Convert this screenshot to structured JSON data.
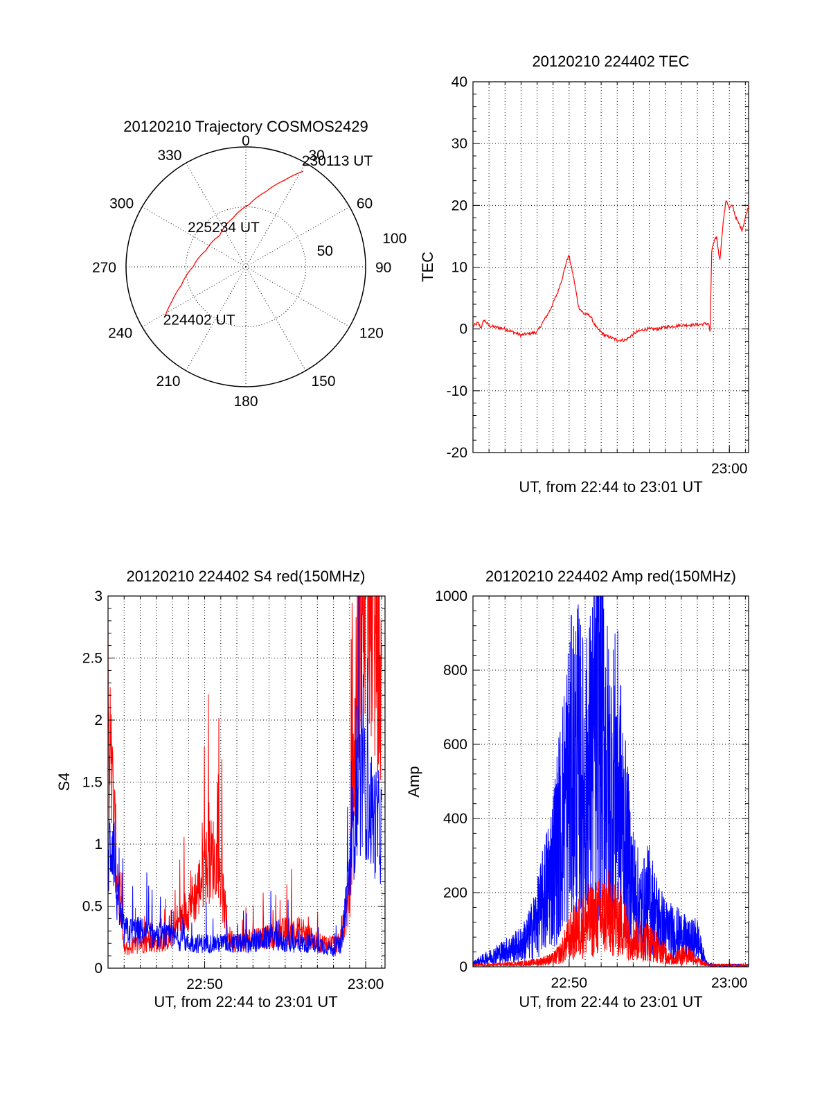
{
  "colors": {
    "red_series": "#ff0000",
    "blue_series": "#0000ff",
    "axes": "#000000"
  },
  "chart_data": [
    {
      "id": "trajectory",
      "type": "polar",
      "title": "20120210 Trajectory COSMOS2429",
      "angle_labels": [
        {
          "deg": 0,
          "text": "0"
        },
        {
          "deg": 30,
          "text": "30"
        },
        {
          "deg": 60,
          "text": "60"
        },
        {
          "deg": 90,
          "text": "90"
        },
        {
          "deg": 120,
          "text": "120"
        },
        {
          "deg": 150,
          "text": "150"
        },
        {
          "deg": 180,
          "text": "180"
        },
        {
          "deg": 210,
          "text": "210"
        },
        {
          "deg": 240,
          "text": "240"
        },
        {
          "deg": 270,
          "text": "270"
        },
        {
          "deg": 300,
          "text": "300"
        },
        {
          "deg": 330,
          "text": "330"
        }
      ],
      "radial_labels": [
        {
          "value": 50,
          "text": "50"
        },
        {
          "value": 100,
          "text": "100"
        }
      ],
      "r_max": 100,
      "track": [
        {
          "az": 238,
          "r": 80
        },
        {
          "az": 245,
          "r": 68
        },
        {
          "az": 254,
          "r": 56
        },
        {
          "az": 270,
          "r": 44
        },
        {
          "az": 292,
          "r": 36
        },
        {
          "az": 320,
          "r": 34
        },
        {
          "az": 345,
          "r": 42
        },
        {
          "az": 3,
          "r": 52
        },
        {
          "az": 15,
          "r": 65
        },
        {
          "az": 24,
          "r": 79
        },
        {
          "az": 31,
          "r": 93
        }
      ],
      "annotations": [
        {
          "text": "224402 UT",
          "az": 238,
          "r": 80
        },
        {
          "text": "225234 UT",
          "az": 305,
          "r": 24
        },
        {
          "text": "230113 UT",
          "az": 31,
          "r": 93
        }
      ]
    },
    {
      "id": "tec",
      "type": "line",
      "title": "20120210 224402 TEC",
      "xlabel": "UT, from 22:44 to 23:01 UT",
      "ylabel": "TEC",
      "xlim": [
        1364.0,
        1381.2
      ],
      "ylim": [
        -20,
        40
      ],
      "yticks": [
        -20,
        -10,
        0,
        10,
        20,
        30,
        40
      ],
      "xticks": [
        {
          "value": 1380,
          "label": "23:00"
        }
      ],
      "series": [
        {
          "color": "red",
          "x": [
            1364.0,
            1364.3,
            1364.5,
            1364.7,
            1365.0,
            1366.0,
            1367.0,
            1368.0,
            1368.8,
            1369.3,
            1369.6,
            1369.9,
            1370.0,
            1370.3,
            1370.6,
            1370.9,
            1371.3,
            1371.7,
            1372.2,
            1373.0,
            1373.5,
            1374.2,
            1374.8,
            1375.5,
            1376.0,
            1377.0,
            1378.0,
            1378.7,
            1378.8,
            1378.9,
            1379.2,
            1379.4,
            1379.6,
            1379.8,
            1380.0,
            1380.2,
            1380.4,
            1380.6,
            1380.8,
            1381.0,
            1381.2
          ],
          "values": [
            0.4,
            1.0,
            0.2,
            1.5,
            0.5,
            0.0,
            -1.0,
            -0.5,
            3.0,
            6.0,
            8.5,
            11.5,
            11.8,
            8.0,
            3.5,
            2.5,
            2.2,
            0.2,
            -1.0,
            -1.8,
            -1.8,
            -0.5,
            0.0,
            0.0,
            0.3,
            0.6,
            0.7,
            0.9,
            -0.5,
            13.0,
            15.0,
            11.0,
            17.0,
            21.0,
            19.5,
            20.0,
            18.0,
            17.0,
            16.0,
            18.0,
            20.0
          ]
        }
      ]
    },
    {
      "id": "s4",
      "type": "line",
      "title": "20120210 224402 S4 red(150MHz)",
      "xlabel": "UT, from 22:44 to 23:01 UT",
      "ylabel": "S4",
      "xlim": [
        1364.0,
        1381.2
      ],
      "ylim": [
        0,
        3
      ],
      "yticks": [
        0,
        0.5,
        1,
        1.5,
        2,
        2.5,
        3
      ],
      "yticklabels": [
        "0",
        "0.5",
        "1",
        "1.5",
        "2",
        "2.5",
        "3"
      ],
      "xticks": [
        {
          "value": 1370,
          "label": "22:50"
        },
        {
          "value": 1380,
          "label": "23:00"
        }
      ],
      "series": [
        {
          "color": "red",
          "x": [
            1364.0,
            1364.5,
            1365.0,
            1366.0,
            1367.0,
            1368.0,
            1368.5,
            1369.0,
            1369.5,
            1370.0,
            1370.5,
            1371.0,
            1371.5,
            1372.0,
            1373.0,
            1374.0,
            1375.0,
            1376.0,
            1377.0,
            1378.0,
            1378.5,
            1379.0,
            1379.5,
            1380.0,
            1380.5,
            1381.0
          ],
          "values": [
            2.0,
            0.9,
            0.15,
            0.2,
            0.2,
            0.25,
            0.4,
            0.5,
            0.6,
            0.8,
            0.9,
            0.7,
            0.25,
            0.2,
            0.25,
            0.25,
            0.3,
            0.3,
            0.2,
            0.2,
            0.2,
            0.6,
            2.5,
            3.0,
            2.8,
            2.0
          ]
        },
        {
          "color": "blue",
          "x": [
            1364.0,
            1364.3,
            1364.6,
            1365.0,
            1366.0,
            1367.0,
            1368.0,
            1369.0,
            1370.0,
            1371.0,
            1372.0,
            1373.0,
            1374.0,
            1375.0,
            1376.0,
            1377.0,
            1378.0,
            1378.5,
            1379.0,
            1379.5,
            1380.0,
            1380.5,
            1381.0
          ],
          "values": [
            0.9,
            1.1,
            0.5,
            0.3,
            0.3,
            0.25,
            0.25,
            0.2,
            0.2,
            0.2,
            0.2,
            0.2,
            0.25,
            0.2,
            0.2,
            0.2,
            0.15,
            0.2,
            0.8,
            1.5,
            1.4,
            1.2,
            1.1
          ]
        }
      ]
    },
    {
      "id": "amp",
      "type": "line",
      "title": "20120210 224402 Amp red(150MHz)",
      "xlabel": "UT, from 22:44 to 23:01 UT",
      "ylabel": "Amp",
      "xlim": [
        1364.0,
        1381.2
      ],
      "ylim": [
        0,
        1000
      ],
      "yticks": [
        0,
        200,
        400,
        600,
        800,
        1000
      ],
      "xticks": [
        {
          "value": 1370,
          "label": "22:50"
        },
        {
          "value": 1380,
          "label": "23:00"
        }
      ],
      "series": [
        {
          "color": "blue",
          "x": [
            1364.0,
            1365.0,
            1366.0,
            1367.0,
            1367.5,
            1368.0,
            1368.5,
            1369.0,
            1369.5,
            1370.0,
            1370.5,
            1371.0,
            1371.5,
            1372.0,
            1372.5,
            1373.0,
            1373.5,
            1374.0,
            1374.5,
            1375.0,
            1375.5,
            1376.0,
            1376.5,
            1377.0,
            1377.5,
            1378.0,
            1378.3,
            1378.6,
            1379.0,
            1380.0,
            1381.2
          ],
          "values": [
            10,
            30,
            50,
            70,
            100,
            150,
            230,
            320,
            450,
            600,
            650,
            560,
            680,
            800,
            560,
            600,
            400,
            250,
            180,
            220,
            160,
            120,
            110,
            100,
            80,
            90,
            40,
            10,
            5,
            5,
            5
          ]
        },
        {
          "color": "red",
          "x": [
            1364.0,
            1365.0,
            1366.0,
            1367.0,
            1368.0,
            1369.0,
            1369.5,
            1370.0,
            1370.5,
            1371.0,
            1371.5,
            1372.0,
            1372.5,
            1373.0,
            1373.5,
            1374.0,
            1374.5,
            1375.0,
            1375.5,
            1376.0,
            1376.5,
            1377.0,
            1377.5,
            1378.0,
            1378.5,
            1379.0,
            1381.2
          ],
          "values": [
            5,
            5,
            8,
            10,
            15,
            25,
            45,
            90,
            120,
            140,
            150,
            160,
            170,
            150,
            120,
            100,
            80,
            80,
            60,
            40,
            20,
            40,
            40,
            20,
            8,
            5,
            5
          ]
        }
      ]
    }
  ]
}
